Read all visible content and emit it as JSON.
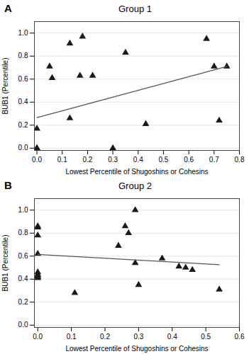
{
  "chart_data": [
    {
      "type": "scatter",
      "title": "Group 1",
      "annotations": [
        "A"
      ],
      "xlabel": "Lowest Percentile of Shugoshins or Cohesins",
      "ylabel": "BUB1 (Percentile)",
      "series": [
        {
          "type": "scatter",
          "marker": "triangle",
          "color": "#1a1a1a",
          "x": [
            0.0,
            0.0,
            0.0,
            0.05,
            0.06,
            0.13,
            0.13,
            0.17,
            0.18,
            0.22,
            0.3,
            0.35,
            0.43,
            0.67,
            0.7,
            0.72,
            0.75
          ],
          "values": [
            0.17,
            0.0,
            0.0,
            0.71,
            0.61,
            0.91,
            0.26,
            0.63,
            0.97,
            0.63,
            0.0,
            0.83,
            0.21,
            0.95,
            0.71,
            0.24,
            0.71
          ]
        },
        {
          "type": "line",
          "color": "#555555",
          "x": [
            0.0,
            0.75
          ],
          "values": [
            0.265,
            0.71
          ]
        }
      ],
      "xlim": [
        -0.01,
        0.8
      ],
      "ylim": [
        -0.02,
        1.1
      ],
      "xticks": [
        {
          "value": 0,
          "label": "0.0"
        },
        0.1,
        0.2,
        0.3,
        0.4,
        0.5,
        0.6,
        0.7,
        0.8
      ],
      "yticks": [
        {
          "value": 0,
          "label": "0.0"
        },
        0.2,
        0.4,
        0.6,
        0.8,
        {
          "value": 1,
          "label": "1.0"
        }
      ],
      "grid": "y"
    },
    {
      "type": "scatter",
      "title": "Group 2",
      "annotations": [
        "B"
      ],
      "xlabel": "Lowest Percentile of Shugoshins or Cohesins",
      "ylabel": "BUB1 (Percentile)",
      "series": [
        {
          "type": "scatter",
          "marker": "triangle",
          "color": "#1a1a1a",
          "x": [
            0.0,
            0.0,
            0.0,
            0.0,
            0.0,
            0.0,
            0.0,
            0.0,
            0.0,
            0.11,
            0.24,
            0.26,
            0.27,
            0.29,
            0.29,
            0.3,
            0.37,
            0.42,
            0.44,
            0.46,
            0.54
          ],
          "values": [
            0.86,
            0.85,
            0.78,
            0.62,
            0.46,
            0.44,
            0.43,
            0.42,
            0.41,
            0.28,
            0.69,
            0.86,
            0.8,
            1.0,
            0.54,
            0.35,
            0.58,
            0.51,
            0.5,
            0.48,
            0.31
          ]
        },
        {
          "type": "line",
          "color": "#555555",
          "x": [
            0.0,
            0.54
          ],
          "values": [
            0.615,
            0.525
          ]
        }
      ],
      "xlim": [
        -0.01,
        0.6
      ],
      "ylim": [
        -0.02,
        1.1
      ],
      "xticks": [
        {
          "value": 0,
          "label": "0.0"
        },
        0.1,
        0.2,
        0.3,
        0.4,
        0.5,
        0.6
      ],
      "yticks": [
        {
          "value": 0,
          "label": "0.0"
        },
        0.2,
        0.4,
        0.6,
        0.8,
        {
          "value": 1,
          "label": "1.0"
        }
      ],
      "grid": "y"
    }
  ]
}
